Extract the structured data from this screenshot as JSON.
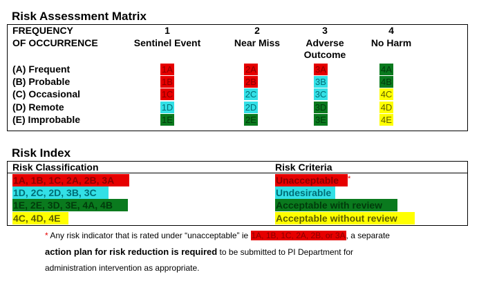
{
  "matrix": {
    "title": "Risk Assessment Matrix",
    "freq_header_1": "FREQUENCY",
    "freq_header_2": "OF OCCURRENCE",
    "columns": [
      {
        "num": "1",
        "name1": "Sentinel Event",
        "name2": ""
      },
      {
        "num": "2",
        "name1": "Near Miss",
        "name2": ""
      },
      {
        "num": "3",
        "name1": "Adverse",
        "name2": "Outcome"
      },
      {
        "num": "4",
        "name1": "No Harm",
        "name2": ""
      }
    ],
    "rows": [
      {
        "label": "(A) Frequent",
        "cells": [
          {
            "code": "1A",
            "color": "#e60000"
          },
          {
            "code": "2A",
            "color": "#e60000"
          },
          {
            "code": "3A",
            "color": "#e60000"
          },
          {
            "code": "4A",
            "color": "#0a7a1e"
          }
        ]
      },
      {
        "label": "(B) Probable",
        "cells": [
          {
            "code": "1B",
            "color": "#e60000"
          },
          {
            "code": "2B",
            "color": "#e60000"
          },
          {
            "code": "3B",
            "color": "#33e0e6"
          },
          {
            "code": "4B",
            "color": "#0a7a1e"
          }
        ]
      },
      {
        "label": "(C) Occasional",
        "cells": [
          {
            "code": "1C",
            "color": "#e60000"
          },
          {
            "code": "2C",
            "color": "#33e0e6"
          },
          {
            "code": "3C",
            "color": "#33e0e6"
          },
          {
            "code": "4C",
            "color": "#ffff00"
          }
        ]
      },
      {
        "label": "(D) Remote",
        "cells": [
          {
            "code": "1D",
            "color": "#33e0e6"
          },
          {
            "code": "2D",
            "color": "#33e0e6"
          },
          {
            "code": "3D",
            "color": "#0a7a1e"
          },
          {
            "code": "4D",
            "color": "#ffff00"
          }
        ]
      },
      {
        "label": "(E) Improbable",
        "cells": [
          {
            "code": "1E",
            "color": "#0a7a1e"
          },
          {
            "code": "2E",
            "color": "#0a7a1e"
          },
          {
            "code": "3E",
            "color": "#0a7a1e"
          },
          {
            "code": "4E",
            "color": "#ffff00"
          }
        ]
      }
    ]
  },
  "index": {
    "title": "Risk Index",
    "col_classification": "Risk Classification",
    "col_criteria": "Risk Criteria",
    "rows": [
      {
        "classification": "1A, 1B, 1C, 2A, 2B, 3A",
        "criteria": "Unacceptable",
        "asterisk": "*",
        "color": "#e60000"
      },
      {
        "classification": "1D, 2C, 2D, 3B, 3C",
        "criteria": "Undesirable",
        "asterisk": "",
        "color": "#33e0e6"
      },
      {
        "classification": "1E, 2E, 3D, 3E, 4A, 4B",
        "criteria": "Acceptable with review",
        "asterisk": "",
        "color": "#0a7a1e"
      },
      {
        "classification": "4C, 4D, 4E",
        "criteria": "Acceptable without review",
        "asterisk": "",
        "color": "#ffff00"
      }
    ]
  },
  "footnote": {
    "asterisk": "*",
    "text_a": " Any risk indicator that is rated under “unacceptable” ie ",
    "highlight": "1A, 1B, 1C, 2A, 2B, or 3A",
    "text_b": ", a separate",
    "bold": "action plan for risk reduction is required",
    "text_c": " to be submitted to PI Department for",
    "text_d": "administration intervention as appropriate."
  }
}
